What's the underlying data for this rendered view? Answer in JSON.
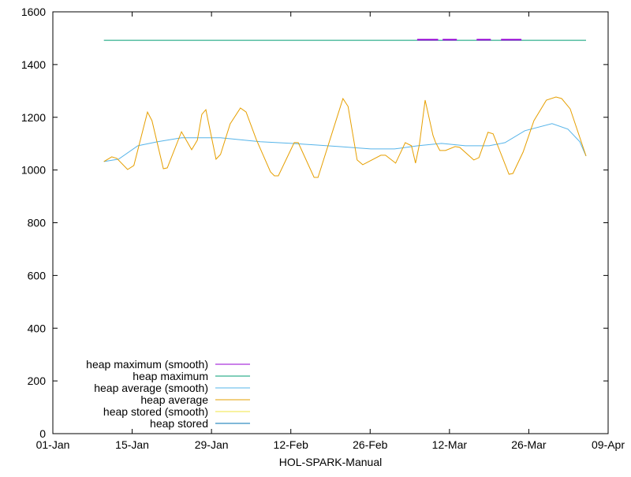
{
  "chart_data": {
    "type": "line",
    "title": "",
    "xlabel": "HOL-SPARK-Manual",
    "ylabel": "",
    "x_unit": "days since 01-Jan",
    "xlim": [
      0,
      98
    ],
    "ylim": [
      0,
      1600
    ],
    "grid": false,
    "legend_position": "bottom-left",
    "x_ticks": [
      {
        "value": 0,
        "label": "01-Jan"
      },
      {
        "value": 14,
        "label": "15-Jan"
      },
      {
        "value": 28,
        "label": "29-Jan"
      },
      {
        "value": 42,
        "label": "12-Feb"
      },
      {
        "value": 56,
        "label": "26-Feb"
      },
      {
        "value": 70,
        "label": "12-Mar"
      },
      {
        "value": 84,
        "label": "26-Mar"
      },
      {
        "value": 98,
        "label": "09-Apr"
      }
    ],
    "y_ticks": [
      0,
      200,
      400,
      600,
      800,
      1000,
      1200,
      1400,
      1600
    ],
    "series": [
      {
        "name": "heap maximum (smooth)",
        "color": "#9400d3",
        "segments": [
          [
            [
              64.3,
              1494
            ],
            [
              68.0,
              1494
            ]
          ],
          [
            [
              68.8,
              1494
            ],
            [
              71.3,
              1494
            ]
          ],
          [
            [
              74.8,
              1494
            ],
            [
              77.3,
              1494
            ]
          ],
          [
            [
              79.1,
              1494
            ],
            [
              82.7,
              1494
            ]
          ]
        ]
      },
      {
        "name": "heap maximum",
        "color": "#009e73",
        "points": [
          [
            9.0,
            1492
          ],
          [
            94.1,
            1492
          ]
        ]
      },
      {
        "name": "heap average (smooth)",
        "color": "#56b4e9",
        "points": [
          [
            9.0,
            1032
          ],
          [
            11.6,
            1041
          ],
          [
            15.0,
            1092
          ],
          [
            18.5,
            1107
          ],
          [
            22.7,
            1122
          ],
          [
            29.6,
            1122
          ],
          [
            32.4,
            1116
          ],
          [
            36.6,
            1107
          ],
          [
            42.2,
            1101
          ],
          [
            46.4,
            1095
          ],
          [
            50.5,
            1089
          ],
          [
            56.1,
            1080
          ],
          [
            60.3,
            1080
          ],
          [
            64.4,
            1092
          ],
          [
            68.6,
            1101
          ],
          [
            72.8,
            1092
          ],
          [
            77.0,
            1092
          ],
          [
            79.8,
            1104
          ],
          [
            83.3,
            1149
          ],
          [
            88.1,
            1176
          ],
          [
            90.9,
            1155
          ],
          [
            93.0,
            1107
          ],
          [
            94.1,
            1053
          ]
        ]
      },
      {
        "name": "heap average",
        "color": "#e69f00",
        "points": [
          [
            9.0,
            1032
          ],
          [
            10.4,
            1050
          ],
          [
            11.3,
            1044
          ],
          [
            13.2,
            1002
          ],
          [
            14.3,
            1017
          ],
          [
            16.7,
            1220
          ],
          [
            17.5,
            1187
          ],
          [
            19.5,
            1005
          ],
          [
            20.2,
            1008
          ],
          [
            22.7,
            1145
          ],
          [
            24.5,
            1077
          ],
          [
            25.5,
            1113
          ],
          [
            26.3,
            1211
          ],
          [
            27.0,
            1229
          ],
          [
            28.8,
            1041
          ],
          [
            29.6,
            1059
          ],
          [
            31.3,
            1175
          ],
          [
            33.1,
            1235
          ],
          [
            34.1,
            1220
          ],
          [
            35.9,
            1116
          ],
          [
            38.4,
            993
          ],
          [
            39.1,
            978
          ],
          [
            39.8,
            978
          ],
          [
            42.6,
            1104
          ],
          [
            43.3,
            1104
          ],
          [
            46.1,
            972
          ],
          [
            46.8,
            972
          ],
          [
            49.1,
            1128
          ],
          [
            51.2,
            1271
          ],
          [
            52.1,
            1241
          ],
          [
            53.7,
            1038
          ],
          [
            54.7,
            1020
          ],
          [
            57.9,
            1056
          ],
          [
            58.7,
            1056
          ],
          [
            60.5,
            1026
          ],
          [
            62.2,
            1104
          ],
          [
            63.3,
            1092
          ],
          [
            64.0,
            1026
          ],
          [
            64.7,
            1098
          ],
          [
            65.7,
            1265
          ],
          [
            67.1,
            1131
          ],
          [
            67.5,
            1107
          ],
          [
            68.3,
            1074
          ],
          [
            69.3,
            1074
          ],
          [
            71.0,
            1089
          ],
          [
            71.8,
            1086
          ],
          [
            74.3,
            1038
          ],
          [
            75.2,
            1047
          ],
          [
            76.8,
            1143
          ],
          [
            77.7,
            1137
          ],
          [
            80.5,
            984
          ],
          [
            81.2,
            987
          ],
          [
            83.0,
            1068
          ],
          [
            84.9,
            1187
          ],
          [
            87.1,
            1265
          ],
          [
            88.8,
            1277
          ],
          [
            89.8,
            1271
          ],
          [
            91.3,
            1232
          ],
          [
            94.1,
            1053
          ]
        ]
      },
      {
        "name": "heap stored (smooth)",
        "color": "#f0e442",
        "points": []
      },
      {
        "name": "heap stored",
        "color": "#0072b2",
        "points": []
      }
    ]
  }
}
